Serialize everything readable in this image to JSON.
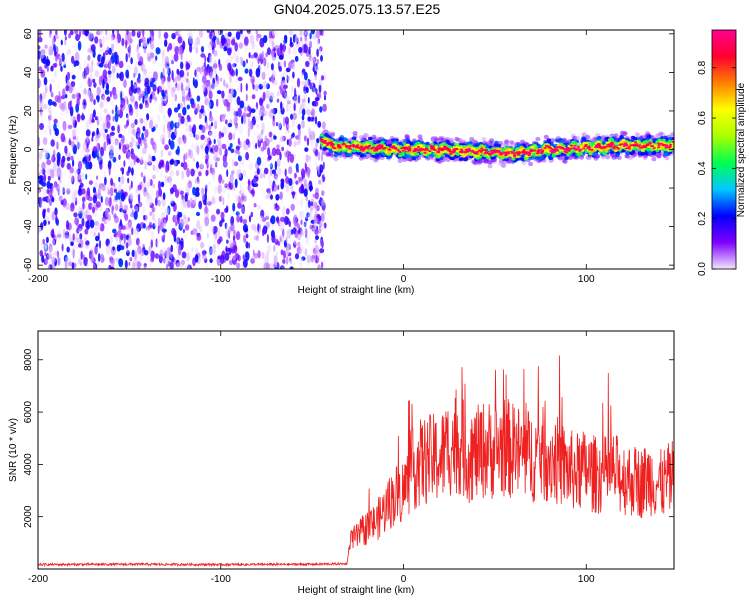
{
  "figure": {
    "title": "GN04.2025.075.13.57.E25"
  },
  "chart_data": [
    {
      "type": "heatmap",
      "name": "spectrogram",
      "xlabel": "Height of straight line (km)",
      "ylabel": "Frequency (Hz)",
      "xlim": [
        -200,
        148
      ],
      "ylim": [
        -62,
        62
      ],
      "xticks": [
        "-200",
        "-100",
        "0",
        "100"
      ],
      "xtick_values": [
        -200,
        -100,
        0,
        100
      ],
      "yticks": [
        "-60",
        "-40",
        "-20",
        "0",
        "20",
        "40",
        "60"
      ],
      "ytick_values": [
        -60,
        -40,
        -20,
        0,
        20,
        40,
        60
      ],
      "noise_region": {
        "x_range": [
          -200,
          -45
        ],
        "freq_range": [
          -62,
          62
        ],
        "amplitude": [
          0.0,
          0.25
        ]
      },
      "signal_band": {
        "x_range": [
          -45,
          148
        ],
        "center_freq_hz": [
          {
            "x": -45,
            "f": 6
          },
          {
            "x": -40,
            "f": 2
          },
          {
            "x": -20,
            "f": 1
          },
          {
            "x": 0,
            "f": 0
          },
          {
            "x": 20,
            "f": 0
          },
          {
            "x": 40,
            "f": -1
          },
          {
            "x": 60,
            "f": -2
          },
          {
            "x": 80,
            "f": 0
          },
          {
            "x": 100,
            "f": 1
          },
          {
            "x": 120,
            "f": 2
          },
          {
            "x": 148,
            "f": 2
          }
        ],
        "peak_amplitude": 0.95
      },
      "colorbar": {
        "label": "Normalized spectral amplitude",
        "range": [
          0,
          0.95
        ],
        "ticks": [
          "0.0",
          "0.2",
          "0.4",
          "0.6",
          "0.8"
        ],
        "tick_values": [
          0.0,
          0.2,
          0.4,
          0.6,
          0.8
        ],
        "colors": [
          "#f3e6ff",
          "#7f00ff",
          "#0000ff",
          "#00c8ff",
          "#00ff50",
          "#aaff00",
          "#ffff00",
          "#ff8000",
          "#ff0030",
          "#ff0090"
        ]
      },
      "grid": false
    },
    {
      "type": "line",
      "name": "snr",
      "xlabel": "Height of straight line (km)",
      "ylabel": "SNR (10 * v/v)",
      "xlim": [
        -200,
        148
      ],
      "ylim": [
        0,
        9100
      ],
      "xticks": [
        "-200",
        "-100",
        "0",
        "100"
      ],
      "xtick_values": [
        -200,
        -100,
        0,
        100
      ],
      "yticks": [
        "2000",
        "4000",
        "6000",
        "8000"
      ],
      "ytick_values": [
        2000,
        4000,
        6000,
        8000
      ],
      "color": "#ee2020",
      "series": [
        {
          "x": [
            -200,
            -150,
            -100,
            -50,
            -31,
            -29,
            -25,
            -20,
            -15,
            -10,
            -5,
            0,
            5,
            10,
            15,
            20,
            25,
            30,
            35,
            40,
            45,
            50,
            55,
            60,
            65,
            70,
            75,
            80,
            85,
            90,
            95,
            100,
            105,
            110,
            115,
            120,
            125,
            130,
            135,
            140,
            145,
            148
          ],
          "y": [
            170,
            180,
            170,
            180,
            200,
            1100,
            1250,
            1600,
            1800,
            2300,
            2800,
            3000,
            3800,
            4100,
            4200,
            4200,
            4700,
            4900,
            4300,
            4400,
            4600,
            4500,
            4700,
            4500,
            4400,
            4300,
            4400,
            4300,
            4100,
            3800,
            3700,
            3800,
            3600,
            3600,
            3700,
            3500,
            3400,
            3300,
            3500,
            3200,
            3400,
            3300
          ]
        }
      ],
      "grid": false
    }
  ]
}
